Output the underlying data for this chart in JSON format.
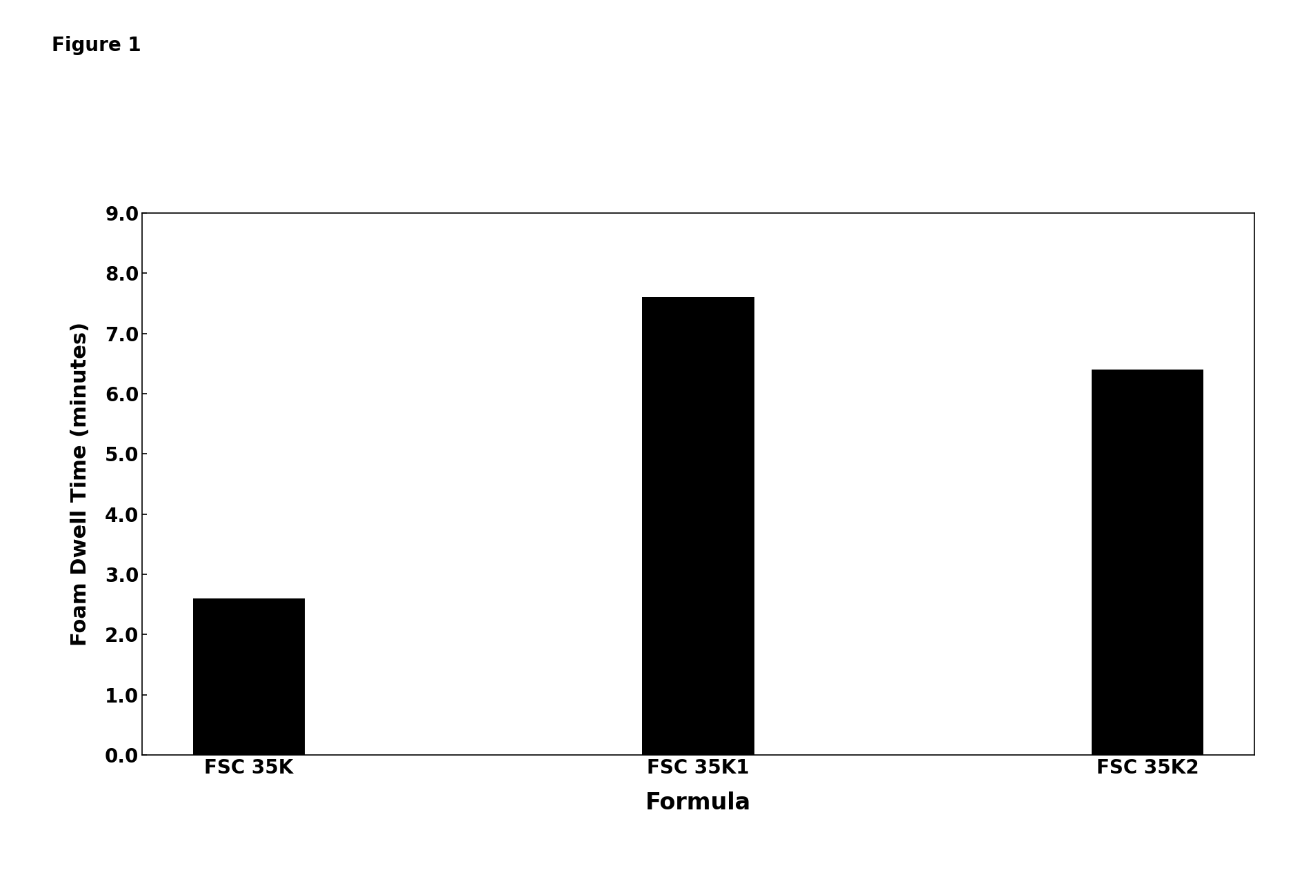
{
  "categories": [
    "FSC 35K",
    "FSC 35K1",
    "FSC 35K2"
  ],
  "values": [
    2.6,
    7.6,
    6.4
  ],
  "bar_color": "#000000",
  "ylabel": "Foam Dwell Time (minutes)",
  "xlabel": "Formula",
  "figure_label": "Figure 1",
  "ylim": [
    0.0,
    9.0
  ],
  "yticks": [
    0.0,
    1.0,
    2.0,
    3.0,
    4.0,
    5.0,
    6.0,
    7.0,
    8.0,
    9.0
  ],
  "bar_width": 0.25,
  "background_color": "#ffffff",
  "figure_label_fontsize": 20,
  "tick_fontsize": 20,
  "xlabel_fontsize": 24,
  "ylabel_fontsize": 22
}
